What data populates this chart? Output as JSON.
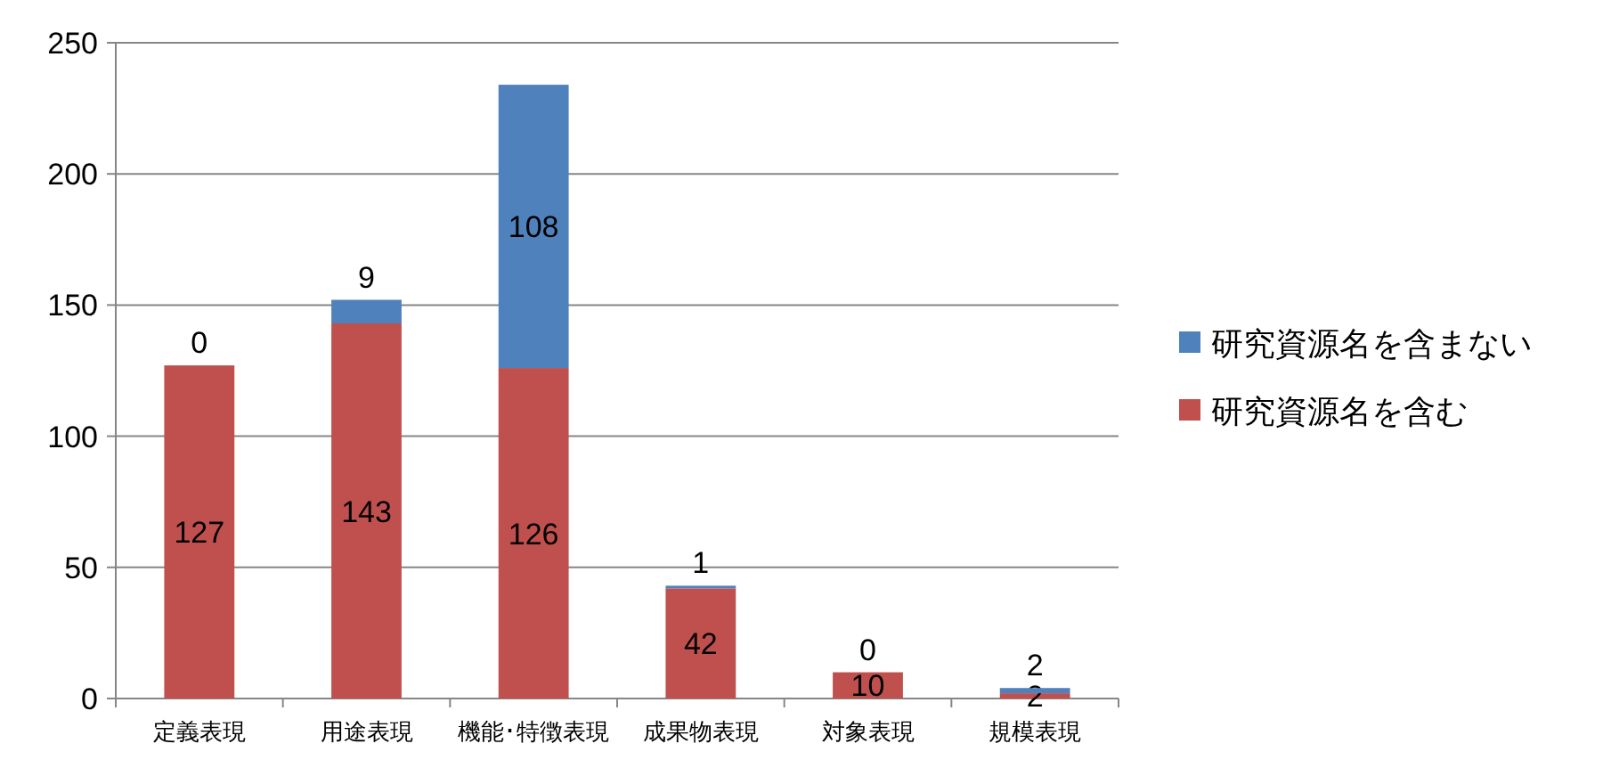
{
  "chart_data": {
    "type": "bar",
    "stacked": true,
    "categories": [
      "定義表現",
      "用途表現",
      "機能･特徴表現",
      "成果物表現",
      "対象表現",
      "規模表現"
    ],
    "series": [
      {
        "name": "研究資源名を含む",
        "color": "#c0504d",
        "values": [
          127,
          143,
          126,
          42,
          10,
          2
        ]
      },
      {
        "name": "研究資源名を含まない",
        "color": "#4f81bd",
        "values": [
          0,
          9,
          108,
          1,
          0,
          2
        ]
      }
    ],
    "ylim": [
      0,
      250
    ],
    "yticks": [
      0,
      50,
      100,
      150,
      200,
      250
    ],
    "grid": "y",
    "legend": "right",
    "data_labels": true
  }
}
